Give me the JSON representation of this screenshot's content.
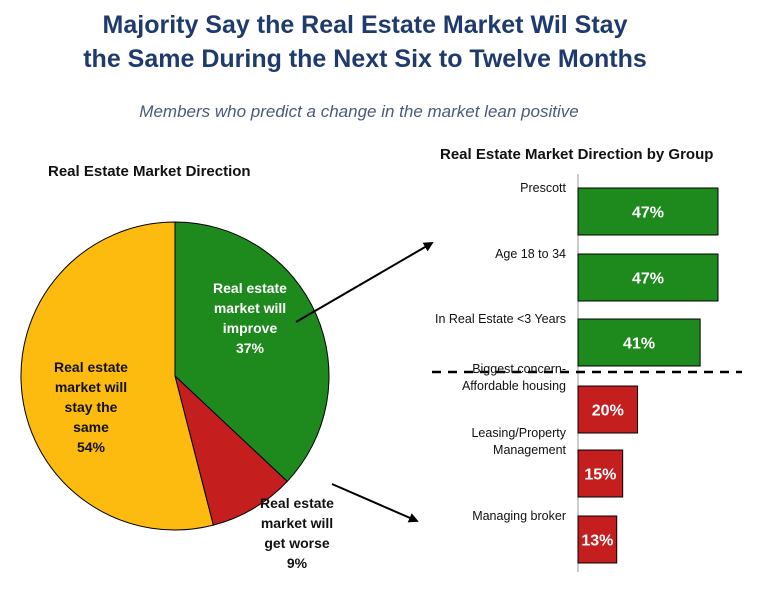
{
  "title_line1": "Majority Say the Real Estate Market Wil Stay",
  "title_line2": "the Same During the Next Six to Twelve Months",
  "subtitle": "Members who predict a change in the market lean positive",
  "colors": {
    "green": "#1e8a1e",
    "red": "#c41e1e",
    "yellow": "#fdbb10",
    "title": "#1f3b6e"
  },
  "chart_data": [
    {
      "type": "pie",
      "title": "Real Estate Market Direction",
      "slices": [
        {
          "lines": [
            "Real estate",
            "market will",
            "improve",
            "37%"
          ],
          "value": 37,
          "color": "#1e8a1e"
        },
        {
          "lines": [
            "Real estate",
            "market will",
            "get worse",
            "9%"
          ],
          "value": 9,
          "color": "#c41e1e"
        },
        {
          "lines": [
            "Real estate",
            "market will",
            "stay the",
            "same",
            "54%"
          ],
          "value": 54,
          "color": "#fdbb10"
        }
      ]
    },
    {
      "type": "bar",
      "orientation": "horizontal",
      "title": "Real Estate Market Direction by Group",
      "categories": [
        [
          "Prescott"
        ],
        [
          "Age 18 to 34"
        ],
        [
          "In Real Estate <3 Years"
        ],
        [
          "Biggest concern-",
          "Affordable housing"
        ],
        [
          "Leasing/Property",
          "Management"
        ],
        [
          "Managing broker"
        ]
      ],
      "values": [
        47,
        47,
        41,
        20,
        15,
        13
      ],
      "value_labels": [
        "47%",
        "47%",
        "41%",
        "20%",
        "15%",
        "13%"
      ],
      "colors": [
        "#1e8a1e",
        "#1e8a1e",
        "#1e8a1e",
        "#c41e1e",
        "#c41e1e",
        "#c41e1e"
      ]
    }
  ]
}
